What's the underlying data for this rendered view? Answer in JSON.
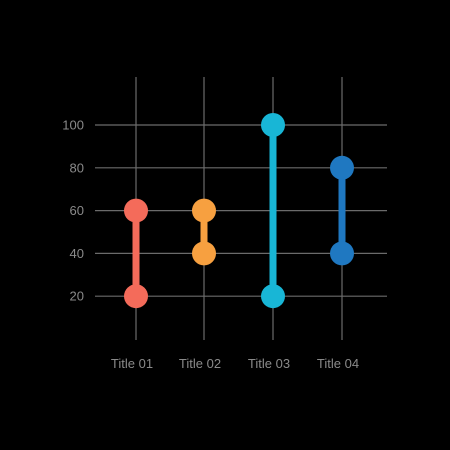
{
  "chart_data": {
    "type": "dumbbell",
    "categories": [
      "Title 01",
      "Title 02",
      "Title 03",
      "Title 04"
    ],
    "ranges": [
      {
        "category": "Title 01",
        "low": 20,
        "high": 60,
        "color": "#f46b5a"
      },
      {
        "category": "Title 02",
        "low": 40,
        "high": 60,
        "color": "#f7a040"
      },
      {
        "category": "Title 03",
        "low": 20,
        "high": 100,
        "color": "#18b6d6"
      },
      {
        "category": "Title 04",
        "low": 40,
        "high": 80,
        "color": "#1f78c1"
      }
    ],
    "y_ticks": [
      "20",
      "40",
      "60",
      "80",
      "100"
    ],
    "ylim": [
      0,
      100
    ],
    "grid": true
  }
}
